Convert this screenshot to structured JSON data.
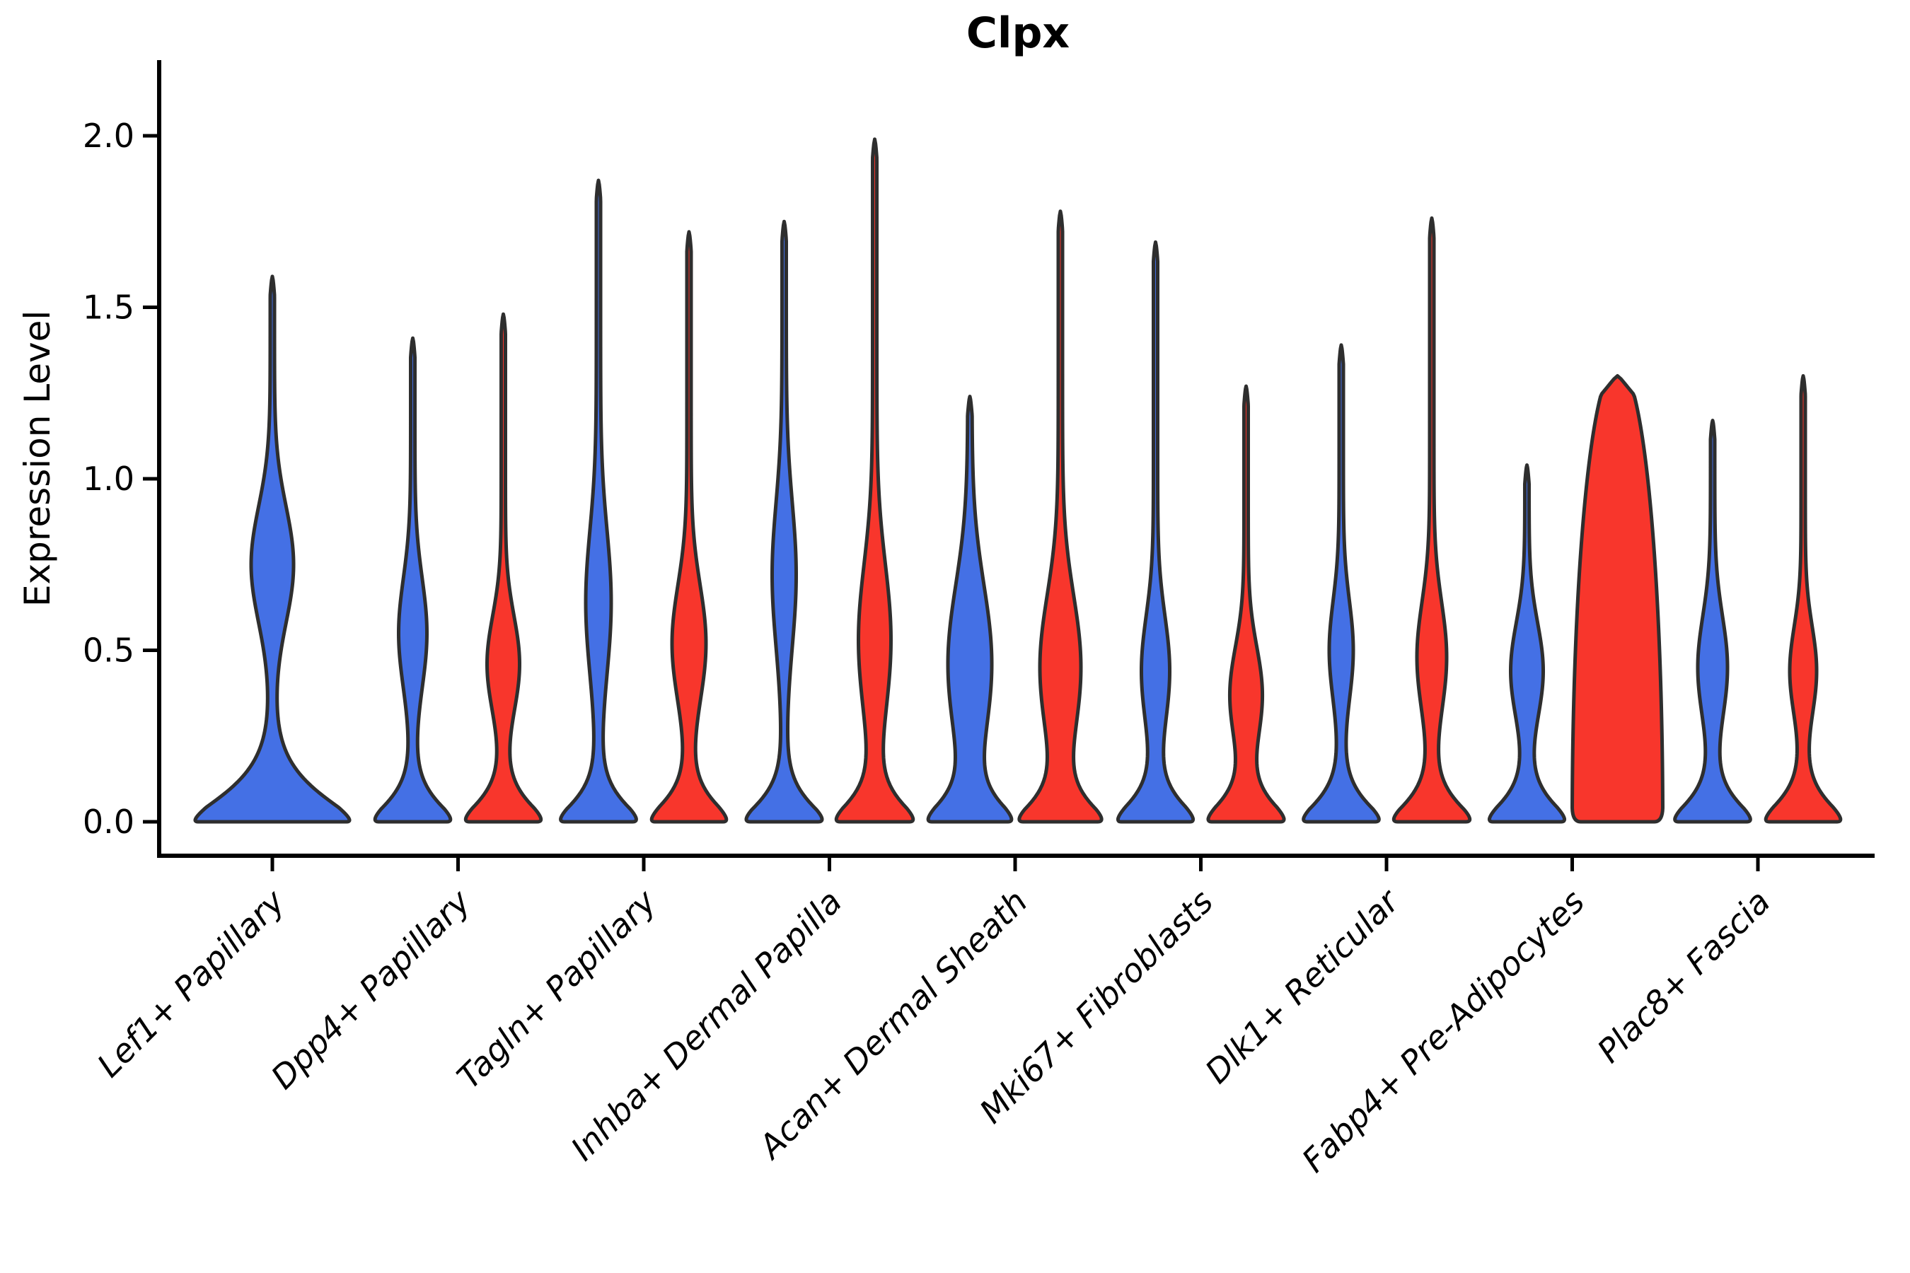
{
  "figure": {
    "title": "Clpx"
  },
  "chart_data": {
    "type": "violin",
    "title": "Clpx",
    "xlabel": "",
    "ylabel": "Expression Level",
    "grid": false,
    "legend": null,
    "y_axis": {
      "tick_labels": [
        "0.0",
        "0.5",
        "1.0",
        "1.5",
        "2.0"
      ],
      "tick_values": [
        0.0,
        0.5,
        1.0,
        1.5,
        2.0
      ],
      "range": [
        -0.1,
        2.22
      ]
    },
    "categories": [
      "Lef1+ Papillary",
      "Dpp4+ Papillary",
      "Tagln+ Papillary",
      "Inhba+ Dermal Papilla",
      "Acan+ Dermal Sheath",
      "Mki67+ Fibroblasts",
      "Dlk1+ Reticular",
      "Fabp4+ Pre-Adipocytes",
      "Plac8+ Fascia"
    ],
    "series": [
      {
        "name": "left violin (blue)",
        "color": "#4470E5",
        "max_expression": [
          1.59,
          1.41,
          1.87,
          1.75,
          1.24,
          1.69,
          1.39,
          1.04,
          1.17
        ]
      },
      {
        "name": "right violin (red)",
        "color": "#F8362C",
        "max_expression": [
          null,
          1.48,
          1.72,
          1.99,
          1.78,
          1.27,
          1.76,
          1.3,
          1.3
        ]
      }
    ],
    "violins": [
      {
        "category_index": 0,
        "side": "left",
        "single": true,
        "profile": "kde",
        "max": 1.59,
        "base_halfwidth": 114,
        "zero_spread": 0.125,
        "bulge_center": 0.75,
        "bulge_sd": 0.17,
        "bulge_halfwidth": 27
      },
      {
        "category_index": 1,
        "side": "left",
        "profile": "kde",
        "max": 1.41,
        "base_halfwidth": 57,
        "bulge_center": 0.55,
        "bulge_sd": 0.16,
        "bulge_halfwidth": 17
      },
      {
        "category_index": 1,
        "side": "right",
        "profile": "kde",
        "max": 1.48,
        "base_halfwidth": 57,
        "bulge_center": 0.46,
        "bulge_sd": 0.14,
        "bulge_halfwidth": 20
      },
      {
        "category_index": 2,
        "side": "left",
        "profile": "kde",
        "max": 1.87,
        "base_halfwidth": 57,
        "bulge_center": 0.64,
        "bulge_sd": 0.21,
        "bulge_halfwidth": 15
      },
      {
        "category_index": 2,
        "side": "right",
        "profile": "kde",
        "max": 1.72,
        "base_halfwidth": 57,
        "bulge_center": 0.52,
        "bulge_sd": 0.17,
        "bulge_halfwidth": 21
      },
      {
        "category_index": 3,
        "side": "left",
        "profile": "kde",
        "max": 1.75,
        "base_halfwidth": 57,
        "bulge_center": 0.72,
        "bulge_sd": 0.21,
        "bulge_halfwidth": 14
      },
      {
        "category_index": 3,
        "side": "right",
        "profile": "kde",
        "max": 1.99,
        "base_halfwidth": 57,
        "bulge_center": 0.53,
        "bulge_sd": 0.22,
        "bulge_halfwidth": 20
      },
      {
        "category_index": 4,
        "side": "left",
        "profile": "kde",
        "max": 1.24,
        "base_halfwidth": 59,
        "bulge_center": 0.46,
        "bulge_sd": 0.23,
        "bulge_halfwidth": 28
      },
      {
        "category_index": 4,
        "side": "right",
        "profile": "kde",
        "max": 1.78,
        "base_halfwidth": 59,
        "bulge_center": 0.45,
        "bulge_sd": 0.21,
        "bulge_halfwidth": 26
      },
      {
        "category_index": 5,
        "side": "left",
        "profile": "kde",
        "max": 1.69,
        "base_halfwidth": 57,
        "bulge_center": 0.44,
        "bulge_sd": 0.16,
        "bulge_halfwidth": 17
      },
      {
        "category_index": 5,
        "side": "right",
        "profile": "kde",
        "max": 1.27,
        "base_halfwidth": 57,
        "bulge_center": 0.37,
        "bulge_sd": 0.14,
        "bulge_halfwidth": 20
      },
      {
        "category_index": 6,
        "side": "left",
        "profile": "kde",
        "max": 1.39,
        "base_halfwidth": 57,
        "bulge_center": 0.5,
        "bulge_sd": 0.145,
        "bulge_halfwidth": 14
      },
      {
        "category_index": 6,
        "side": "right",
        "profile": "kde",
        "max": 1.76,
        "base_halfwidth": 57,
        "bulge_center": 0.48,
        "bulge_sd": 0.16,
        "bulge_halfwidth": 18
      },
      {
        "category_index": 7,
        "side": "left",
        "profile": "kde",
        "max": 1.04,
        "base_halfwidth": 57,
        "bulge_center": 0.44,
        "bulge_sd": 0.14,
        "bulge_halfwidth": 20
      },
      {
        "category_index": 7,
        "side": "right",
        "profile": "dome",
        "max": 1.3,
        "base_halfwidth": 62
      },
      {
        "category_index": 8,
        "side": "left",
        "profile": "kde",
        "max": 1.17,
        "base_halfwidth": 57,
        "bulge_center": 0.45,
        "bulge_sd": 0.15,
        "bulge_halfwidth": 18
      },
      {
        "category_index": 8,
        "side": "right",
        "profile": "kde",
        "max": 1.3,
        "base_halfwidth": 57,
        "bulge_center": 0.44,
        "bulge_sd": 0.13,
        "bulge_halfwidth": 16
      }
    ]
  },
  "style": {
    "blue": "#4470E5",
    "red": "#F8362C",
    "outline": "#2E2E2E",
    "axis_color": "#000000",
    "background": "#FFFFFF"
  }
}
